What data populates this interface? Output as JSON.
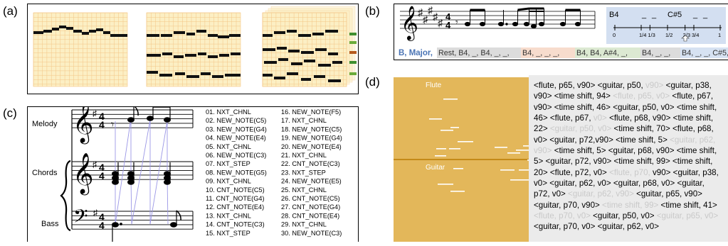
{
  "panel_labels": {
    "a": "(a)",
    "b": "(b)",
    "c": "(c)",
    "d": "(d)"
  },
  "panel_b": {
    "key_label": "B, Major,",
    "token_segments": [
      "Rest, B4, _, B4, _, _,",
      "B4, _, _, _,",
      "B4, B4, A#4, _,",
      "B4, _, _,",
      "B4, _, _, C#5, _, _"
    ],
    "segment_colors": [
      "#dcdcdc",
      "#f7dccd",
      "#dce9d2",
      "#dcdcdc",
      "#d6e2f2"
    ],
    "timeline": {
      "top_labels": [
        "B4",
        "_",
        "_",
        "C#5",
        "_",
        "_"
      ],
      "tick_labels": [
        "0",
        "1/4",
        "1/3",
        "1/2",
        "2/3",
        "3/4",
        "1"
      ]
    }
  },
  "panel_c": {
    "staff_labels": [
      "Melody",
      "Chords",
      "Bass"
    ],
    "tokens_col1": [
      "01. NXT_CHNL",
      "02. NEW_NOTE(C5)",
      "03. NEW_NOTE(G4)",
      "04. NEW_NOTE(E4)",
      "05. NXT_CHNL",
      "06. NEW_NOTE(C3)",
      "07. NXT_STEP",
      "08. NEW_NOTE(G5)",
      "09. NXT_CHNL",
      "10. CNT_NOTE(C5)",
      "11. CNT_NOTE(G4)",
      "12. CNT_NOTE(E4)",
      "13. NXT_CHNL",
      "14. CNT_NOTE(C3)",
      "15. NXT_STEP"
    ],
    "tokens_col2": [
      "16. NEW_NOTE(F5)",
      "17. NXT_CHNL",
      "18. NEW_NOTE(C5)",
      "19. NEW_NOTE(G4)",
      "20. NEW_NOTE(E4)",
      "21. NXT_CHNL",
      "22. CNT_NOTE(C3)",
      "23. NXT_STEP",
      "24. NEW_NOTE(E5)",
      "25. NXT_CHNL",
      "26. CNT_NOTE(C5)",
      "27. CNT_NOTE(G4)",
      "28. CNT_NOTE(E4)",
      "29. NXT_CHNL",
      "30. NEW_NOTE(C3)"
    ]
  },
  "panel_d": {
    "track_labels": [
      "Flute",
      "Guitar"
    ],
    "tokens": [
      {
        "t": "<flute, p65, v90>",
        "dim": false
      },
      {
        "t": "<guitar, p50,",
        "dim": false
      },
      {
        "t": "v90>",
        "dim": true
      },
      {
        "t": "<guitar,",
        "dim": false
      },
      {
        "t": "p38, v90>",
        "dim": false
      },
      {
        "t": "<time shift, 94>",
        "dim": false
      },
      {
        "t": "<flute, p65, v0>",
        "dim": true
      },
      {
        "t": "<flute, p67, v90>",
        "dim": false
      },
      {
        "t": "<time shift, 46>",
        "dim": false
      },
      {
        "t": "<guitar, p50,",
        "dim": false
      },
      {
        "t": "v0>",
        "dim": false
      },
      {
        "t": "<time shift, 46>",
        "dim": false
      },
      {
        "t": "<flute, p67,",
        "dim": false
      },
      {
        "t": "v0>",
        "dim": true
      },
      {
        "t": "<flute, p68,",
        "dim": false
      },
      {
        "t": "v90>",
        "dim": false
      },
      {
        "t": "<time shift, 22>",
        "dim": false
      },
      {
        "t": "<guitar, p50, v0>",
        "dim": true
      },
      {
        "t": "<time",
        "dim": false
      },
      {
        "t": "shift, 70>",
        "dim": false
      },
      {
        "t": "<flute, p68, v0>",
        "dim": false
      },
      {
        "t": "<guitar, p72,v90>",
        "dim": false
      },
      {
        "t": "<time shift, 5>",
        "dim": false
      },
      {
        "t": "<guitar, p62, v90>",
        "dim": true
      },
      {
        "t": "<time shift, 5>",
        "dim": false
      },
      {
        "t": "<guitar, p68, v90>",
        "dim": false
      },
      {
        "t": "<time shift, 5>",
        "dim": false
      },
      {
        "t": "<guitar, p72,",
        "dim": false
      },
      {
        "t": "v90>",
        "dim": false
      },
      {
        "t": "<time shift, 99>",
        "dim": false
      },
      {
        "t": "<time shift, 20>",
        "dim": false
      },
      {
        "t": "<flute,",
        "dim": false
      },
      {
        "t": "p72, v0>",
        "dim": false
      },
      {
        "t": "<flute, p70,",
        "dim": true
      },
      {
        "t": "v90>",
        "dim": false
      },
      {
        "t": "<guitar, p38, v0>",
        "dim": false
      },
      {
        "t": "<guitar, p62, v0>",
        "dim": false
      },
      {
        "t": "<guitar, p68, v0>",
        "dim": false
      },
      {
        "t": "<guitar, p72,",
        "dim": false
      },
      {
        "t": "v0>",
        "dim": false
      },
      {
        "t": "<guitar, p62, v90>",
        "dim": true
      },
      {
        "t": "<guitar, p65, v90>",
        "dim": false
      },
      {
        "t": "<guitar, p70, v90>",
        "dim": false
      },
      {
        "t": "<time shift, 99>",
        "dim": true
      },
      {
        "t": "<time shift,",
        "dim": false
      },
      {
        "t": "41>",
        "dim": false
      },
      {
        "t": "<flute, p70, v0>",
        "dim": true
      },
      {
        "t": "<guitar, p50, v0>",
        "dim": false
      },
      {
        "t": "<guitar,",
        "dim": true
      },
      {
        "t": "p65, v0>",
        "dim": true
      },
      {
        "t": "<guitar, p70, v0>",
        "dim": false
      },
      {
        "t": "<guitar, p62, v0>",
        "dim": false
      }
    ]
  },
  "colors": {
    "roll_bg": "#fcefc4",
    "roll_grid": "#f3c586",
    "note": "#111111",
    "timeline_bg": "#d3dff1",
    "pianoroll_d_bg": "#e3b75a",
    "key_blue": "#4a74b5"
  }
}
